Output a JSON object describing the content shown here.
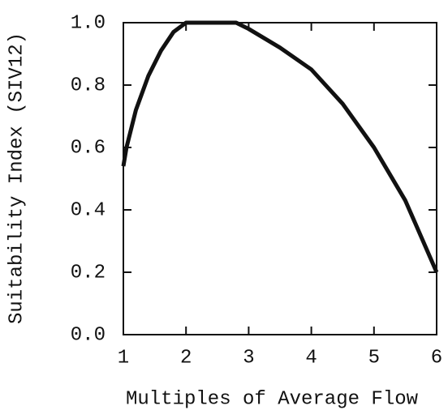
{
  "chart_data": {
    "type": "line",
    "x_label": "Multiples of Average Flow",
    "y_label": "Suitability Index (SIV12)",
    "xlim": [
      1,
      6
    ],
    "xticks": [
      1,
      2,
      3,
      4,
      5,
      6
    ],
    "ylim": [
      0,
      1
    ],
    "yticks": [
      {
        "value": 0,
        "label": "0.0"
      },
      {
        "value": 0.2,
        "label": "0.2"
      },
      {
        "value": 0.4,
        "label": "0.4"
      },
      {
        "value": 0.6,
        "label": "0.6"
      },
      {
        "value": 0.8,
        "label": "0.8"
      },
      {
        "value": 1,
        "label": "1.0"
      }
    ],
    "series": [
      {
        "color": "#111111",
        "x": [
          1,
          1.05,
          1.2,
          1.4,
          1.6,
          1.8,
          2,
          2.8,
          3,
          3.5,
          4,
          4.5,
          5,
          5.5,
          6
        ],
        "values": [
          0.54,
          0.6,
          0.72,
          0.83,
          0.91,
          0.97,
          1.0,
          1.0,
          0.98,
          0.92,
          0.85,
          0.74,
          0.6,
          0.43,
          0.2
        ]
      }
    ]
  }
}
